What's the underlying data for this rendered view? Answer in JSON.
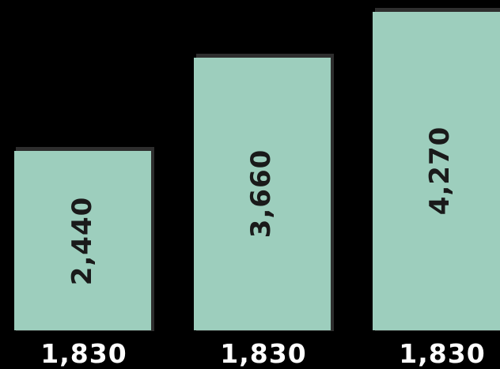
{
  "colors": {
    "background": "#000000",
    "panel_fill": "#9dcebd",
    "panel_edge": "#2e2e2e",
    "height_text": "#1a1a1a",
    "width_text": "#ffffff"
  },
  "panels": [
    {
      "height_label": "2,440",
      "width_label": "1,830",
      "height_mm": 2440,
      "width_mm": 1830
    },
    {
      "height_label": "3,660",
      "width_label": "1,830",
      "height_mm": 3660,
      "width_mm": 1830
    },
    {
      "height_label": "4,270",
      "width_label": "1,830",
      "height_mm": 4270,
      "width_mm": 1830
    }
  ]
}
